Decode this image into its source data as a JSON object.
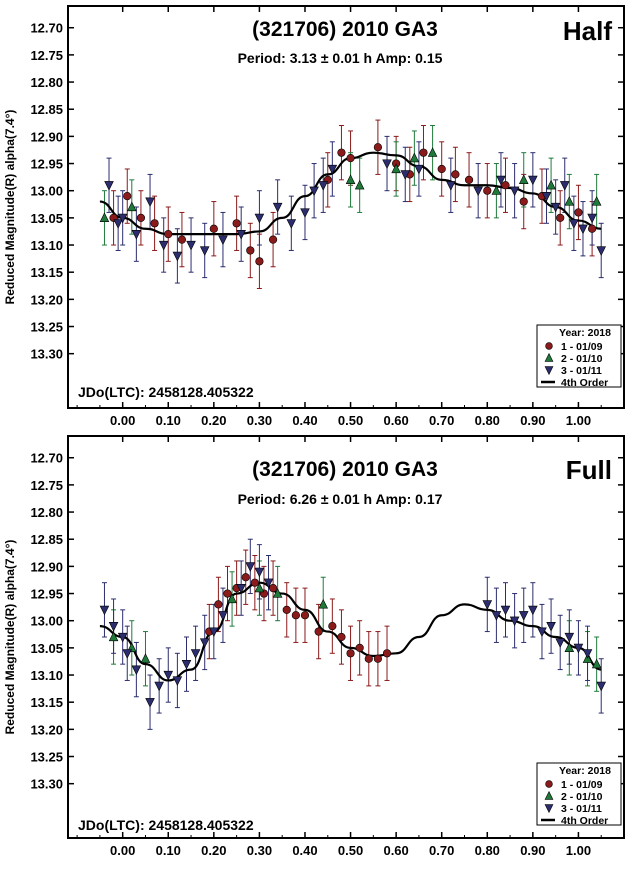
{
  "chart_data": [
    {
      "type": "scatter",
      "title": "(321706) 2010 GA3",
      "subtitle": "Period: 3.13 ± 0.01 h  Amp: 0.15",
      "mode_label": "Half",
      "ylabel": "Reduced Magnitude(R) alpha(7.4°)",
      "xlabel": "",
      "x_ticks": [
        "0.00",
        "0.10",
        "0.20",
        "0.30",
        "0.40",
        "0.50",
        "0.60",
        "0.70",
        "0.80",
        "0.90",
        "1.00"
      ],
      "y_ticks": [
        "12.70",
        "12.75",
        "12.80",
        "12.85",
        "12.90",
        "12.95",
        "13.00",
        "13.05",
        "13.10",
        "13.15",
        "13.20",
        "13.25",
        "13.30"
      ],
      "xlim": [
        -0.12,
        1.1
      ],
      "ylim": [
        13.4,
        12.66
      ],
      "y_inverted": true,
      "jd_label": "JDo(LTC): 2458128.405322",
      "legend": {
        "title": "Year: 2018",
        "placement": "bottom-right",
        "entries": [
          {
            "label": "1 - 01/09",
            "marker": "circle",
            "color": "#8b1a1a"
          },
          {
            "label": "2 - 01/10",
            "marker": "triangle-up",
            "color": "#1f7a3a"
          },
          {
            "label": "3 - 01/11",
            "marker": "triangle-down",
            "color": "#2b2d6e"
          },
          {
            "label": "4th Order",
            "marker": "line",
            "color": "#000000"
          }
        ]
      },
      "fit_curve": {
        "name": "4th Order",
        "x": [
          -0.05,
          0.0,
          0.05,
          0.1,
          0.15,
          0.2,
          0.25,
          0.3,
          0.35,
          0.4,
          0.45,
          0.5,
          0.55,
          0.6,
          0.65,
          0.7,
          0.75,
          0.8,
          0.85,
          0.9,
          0.95,
          1.0,
          1.05
        ],
        "y": [
          13.02,
          13.05,
          13.07,
          13.08,
          13.08,
          13.08,
          13.08,
          13.075,
          13.05,
          13.01,
          12.97,
          12.94,
          12.93,
          12.935,
          12.955,
          12.98,
          12.99,
          12.99,
          12.995,
          13.005,
          13.03,
          13.055,
          13.07
        ]
      },
      "series": [
        {
          "name": "1 - 01/09",
          "marker": "circle",
          "color": "#8b1a1a",
          "x": [
            -0.02,
            0.01,
            0.04,
            0.07,
            0.1,
            0.13,
            0.2,
            0.25,
            0.28,
            0.3,
            0.33,
            0.45,
            0.48,
            0.5,
            0.56,
            0.6,
            0.63,
            0.66,
            0.7,
            0.73,
            0.76,
            0.8,
            0.84,
            0.88,
            0.92,
            0.96,
            1.0,
            1.03
          ],
          "y": [
            13.05,
            13.01,
            13.05,
            13.06,
            13.08,
            13.09,
            13.07,
            13.06,
            13.11,
            13.13,
            13.09,
            12.98,
            12.93,
            12.94,
            12.92,
            12.95,
            12.97,
            12.93,
            12.96,
            12.97,
            12.98,
            13.0,
            12.99,
            13.02,
            13.01,
            13.05,
            13.04,
            13.07
          ],
          "err": 0.05
        },
        {
          "name": "2 - 01/10",
          "marker": "triangle-up",
          "color": "#1f7a3a",
          "x": [
            -0.04,
            0.02,
            0.5,
            0.52,
            0.6,
            0.64,
            0.68,
            0.82,
            0.88,
            0.94,
            0.98,
            1.04
          ],
          "y": [
            13.05,
            13.03,
            12.98,
            12.99,
            12.96,
            12.94,
            12.93,
            13.0,
            12.98,
            12.99,
            13.02,
            13.02
          ],
          "err": 0.05
        },
        {
          "name": "3 - 01/11",
          "marker": "triangle-down",
          "color": "#2b2d6e",
          "x": [
            -0.03,
            -0.01,
            0.0,
            0.03,
            0.06,
            0.09,
            0.12,
            0.15,
            0.18,
            0.22,
            0.26,
            0.3,
            0.34,
            0.37,
            0.4,
            0.42,
            0.44,
            0.46,
            0.58,
            0.62,
            0.65,
            0.72,
            0.78,
            0.83,
            0.86,
            0.9,
            0.93,
            0.95,
            0.97,
            0.99,
            1.01,
            1.03,
            1.05
          ],
          "y": [
            12.99,
            13.06,
            13.05,
            13.08,
            13.02,
            13.1,
            13.12,
            13.1,
            13.11,
            13.09,
            13.08,
            13.05,
            13.03,
            13.06,
            13.04,
            13.0,
            12.99,
            12.96,
            12.95,
            12.97,
            12.96,
            12.99,
            13.0,
            12.98,
            13.0,
            12.98,
            13.01,
            13.03,
            12.99,
            13.06,
            13.07,
            13.05,
            13.11
          ],
          "err": 0.05
        }
      ]
    },
    {
      "type": "scatter",
      "title": "(321706) 2010 GA3",
      "subtitle": "Period: 6.26 ± 0.01 h  Amp: 0.17",
      "mode_label": "Full",
      "ylabel": "Reduced Magnitude(R) alpha(7.4°)",
      "xlabel": "",
      "x_ticks": [
        "0.00",
        "0.10",
        "0.20",
        "0.30",
        "0.40",
        "0.50",
        "0.60",
        "0.70",
        "0.80",
        "0.90",
        "1.00"
      ],
      "y_ticks": [
        "12.70",
        "12.75",
        "12.80",
        "12.85",
        "12.90",
        "12.95",
        "13.00",
        "13.05",
        "13.10",
        "13.15",
        "13.20",
        "13.25",
        "13.30"
      ],
      "xlim": [
        -0.12,
        1.1
      ],
      "ylim": [
        13.4,
        12.66
      ],
      "y_inverted": true,
      "jd_label": "JDo(LTC): 2458128.405322",
      "legend": {
        "title": "Year: 2018",
        "placement": "bottom-right",
        "entries": [
          {
            "label": "1 - 01/09",
            "marker": "circle",
            "color": "#8b1a1a"
          },
          {
            "label": "2 - 01/10",
            "marker": "triangle-up",
            "color": "#1f7a3a"
          },
          {
            "label": "3 - 01/11",
            "marker": "triangle-down",
            "color": "#2b2d6e"
          },
          {
            "label": "4th Order",
            "marker": "line",
            "color": "#000000"
          }
        ]
      },
      "fit_curve": {
        "name": "4th Order",
        "x": [
          -0.05,
          0.0,
          0.05,
          0.1,
          0.15,
          0.2,
          0.25,
          0.3,
          0.35,
          0.4,
          0.45,
          0.5,
          0.55,
          0.6,
          0.65,
          0.7,
          0.75,
          0.8,
          0.85,
          0.9,
          0.95,
          1.0,
          1.05
        ],
        "y": [
          13.01,
          13.03,
          13.08,
          13.11,
          13.09,
          13.02,
          12.95,
          12.93,
          12.95,
          12.98,
          13.02,
          13.05,
          13.065,
          13.06,
          13.03,
          12.99,
          12.97,
          12.98,
          13.0,
          13.01,
          13.03,
          13.05,
          13.09
        ]
      },
      "series": [
        {
          "name": "1 - 01/09",
          "marker": "circle",
          "color": "#8b1a1a",
          "x": [
            0.19,
            0.21,
            0.23,
            0.25,
            0.27,
            0.29,
            0.31,
            0.33,
            0.36,
            0.38,
            0.4,
            0.43,
            0.46,
            0.48,
            0.5,
            0.52,
            0.54,
            0.56,
            0.58
          ],
          "y": [
            13.02,
            12.97,
            12.95,
            12.94,
            12.92,
            12.93,
            12.95,
            12.94,
            12.98,
            12.99,
            12.99,
            13.02,
            13.01,
            13.03,
            13.06,
            13.05,
            13.07,
            13.07,
            13.06
          ],
          "err": 0.05
        },
        {
          "name": "2 - 01/10",
          "marker": "triangle-up",
          "color": "#1f7a3a",
          "x": [
            -0.02,
            0.02,
            0.05,
            0.24,
            0.3,
            0.34,
            0.44,
            0.98,
            1.02,
            1.04
          ],
          "y": [
            13.03,
            13.05,
            13.07,
            12.96,
            12.94,
            12.95,
            12.97,
            13.05,
            13.07,
            13.08
          ],
          "err": 0.05
        },
        {
          "name": "3 - 01/11",
          "marker": "triangle-down",
          "color": "#2b2d6e",
          "x": [
            -0.04,
            -0.02,
            0.0,
            0.01,
            0.03,
            0.06,
            0.08,
            0.1,
            0.12,
            0.14,
            0.16,
            0.18,
            0.2,
            0.22,
            0.26,
            0.28,
            0.3,
            0.32,
            0.8,
            0.82,
            0.84,
            0.86,
            0.88,
            0.9,
            0.92,
            0.94,
            0.96,
            0.98,
            1.0,
            1.02,
            1.05
          ],
          "y": [
            12.98,
            13.01,
            13.03,
            13.06,
            13.09,
            13.15,
            13.12,
            13.1,
            13.11,
            13.08,
            13.06,
            13.04,
            13.02,
            12.99,
            12.94,
            12.9,
            12.91,
            12.93,
            12.97,
            12.99,
            12.98,
            13.0,
            12.99,
            12.98,
            13.02,
            13.01,
            13.04,
            13.03,
            13.05,
            13.06,
            13.12
          ],
          "err": 0.05
        }
      ]
    }
  ]
}
